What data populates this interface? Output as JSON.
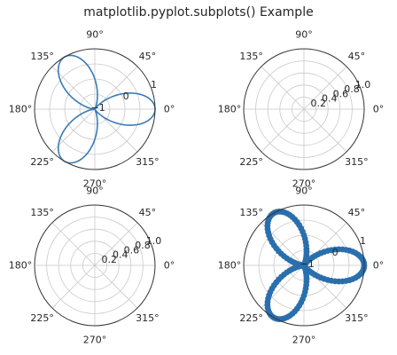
{
  "figure": {
    "suptitle": "matplotlib.pyplot.subplots() Example"
  },
  "chart_data": [
    {
      "type": "line",
      "projection": "polar",
      "series": [
        {
          "equation": "r = cos(3θ)",
          "theta_range_deg": [
            0,
            360
          ],
          "samples": 400
        }
      ],
      "angle_tick_labels": [
        "0°",
        "45°",
        "90°",
        "135°",
        "180°",
        "225°",
        "270°",
        "315°"
      ],
      "radial_range": [
        -1,
        1
      ],
      "radial_ticks": [
        -1,
        -0.5,
        0,
        0.5,
        1
      ],
      "radial_tick_labels": [
        "−1",
        "",
        "0",
        "",
        "1"
      ],
      "radial_label_angle_deg": 22.5,
      "color": "#3a7bb5",
      "grid": true
    },
    {
      "type": "line",
      "projection": "polar",
      "series": [],
      "angle_tick_labels": [
        "0°",
        "45°",
        "90°",
        "135°",
        "180°",
        "225°",
        "270°",
        "315°"
      ],
      "radial_range": [
        0,
        1
      ],
      "radial_ticks": [
        0.2,
        0.4,
        0.6,
        0.8,
        1.0
      ],
      "radial_tick_labels": [
        "0.2",
        "0.4",
        "0.6",
        "0.8",
        "1.0"
      ],
      "radial_label_angle_deg": 22.5,
      "grid": true
    },
    {
      "type": "line",
      "projection": "polar",
      "series": [],
      "angle_tick_labels": [
        "0°",
        "45°",
        "90°",
        "135°",
        "180°",
        "225°",
        "270°",
        "315°"
      ],
      "radial_range": [
        0,
        1
      ],
      "radial_ticks": [
        0.2,
        0.4,
        0.6,
        0.8,
        1.0
      ],
      "radial_tick_labels": [
        "0.2",
        "0.4",
        "0.6",
        "0.8",
        "1.0"
      ],
      "radial_label_angle_deg": 22.5,
      "grid": true
    },
    {
      "type": "scatter",
      "projection": "polar",
      "series": [
        {
          "equation": "r = cos(3θ)",
          "theta_range_deg": [
            0,
            360
          ],
          "samples": 160
        }
      ],
      "angle_tick_labels": [
        "0°",
        "45°",
        "90°",
        "135°",
        "180°",
        "225°",
        "270°",
        "315°"
      ],
      "radial_range": [
        -1,
        1
      ],
      "radial_ticks": [
        -1,
        -0.5,
        0,
        0.5,
        1
      ],
      "radial_tick_labels": [
        "−1",
        "",
        "0",
        "",
        "1"
      ],
      "radial_label_angle_deg": 22.5,
      "color": "#2a6fad",
      "grid": true
    }
  ]
}
